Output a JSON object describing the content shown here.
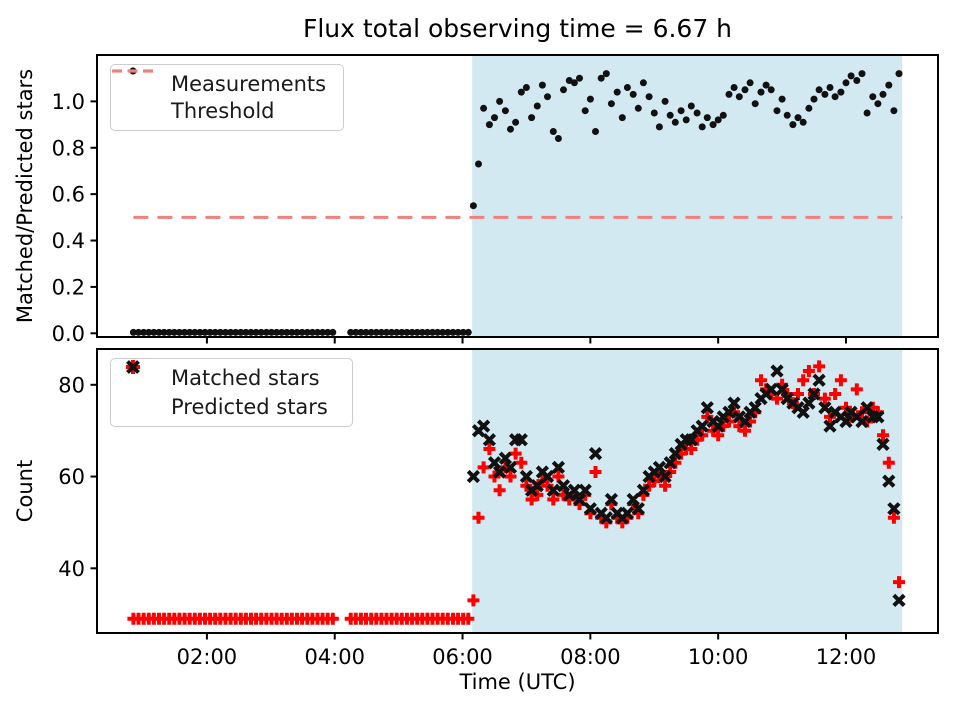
{
  "figure_title": "Flux total observing time = 6.67 h",
  "colors": {
    "background": "#ffffff",
    "spine": "#000000",
    "shaded_region": "#d3e9f1",
    "measurements": "#111111",
    "threshold": "#f08080",
    "matched": "#ff0000",
    "predicted": "#111111"
  },
  "baseline_hours": [
    0.85,
    0.93,
    1.01,
    1.09,
    1.17,
    1.25,
    1.33,
    1.41,
    1.49,
    1.57,
    1.65,
    1.73,
    1.81,
    1.89,
    1.97,
    2.05,
    2.13,
    2.21,
    2.29,
    2.37,
    2.45,
    2.53,
    2.61,
    2.69,
    2.77,
    2.85,
    2.93,
    3.01,
    3.09,
    3.17,
    3.25,
    3.33,
    3.41,
    3.49,
    3.57,
    3.65,
    3.73,
    3.81,
    3.89,
    3.97,
    4.25,
    4.33,
    4.41,
    4.49,
    4.57,
    4.65,
    4.73,
    4.81,
    4.89,
    4.97,
    5.05,
    5.13,
    5.21,
    5.29,
    5.37,
    5.45,
    5.53,
    5.61,
    5.69,
    5.77,
    5.85,
    5.93,
    6.01,
    6.09
  ],
  "active_hours": [
    6.17,
    6.25,
    6.33,
    6.42,
    6.5,
    6.58,
    6.67,
    6.75,
    6.83,
    6.92,
    7.0,
    7.08,
    7.17,
    7.25,
    7.33,
    7.42,
    7.5,
    7.58,
    7.67,
    7.75,
    7.83,
    7.92,
    8.0,
    8.08,
    8.17,
    8.25,
    8.33,
    8.42,
    8.5,
    8.58,
    8.67,
    8.75,
    8.83,
    8.92,
    9.0,
    9.08,
    9.17,
    9.25,
    9.33,
    9.42,
    9.5,
    9.58,
    9.67,
    9.75,
    9.83,
    9.92,
    10.0,
    10.08,
    10.17,
    10.25,
    10.33,
    10.42,
    10.5,
    10.58,
    10.67,
    10.75,
    10.83,
    10.92,
    11.0,
    11.08,
    11.17,
    11.25,
    11.33,
    11.42,
    11.5,
    11.58,
    11.67,
    11.75,
    11.83,
    11.92,
    12.0,
    12.08,
    12.17,
    12.25,
    12.33,
    12.42,
    12.5,
    12.58,
    12.67,
    12.75,
    12.83
  ],
  "chart_data": [
    {
      "type": "scatter",
      "title": "Flux total observing time = 6.67 h",
      "ylabel": "Matched/Predicted stars",
      "yticks": [
        0.0,
        0.2,
        0.4,
        0.6,
        0.8,
        1.0
      ],
      "ytick_labels": [
        "0.0",
        "0.2",
        "0.4",
        "0.6",
        "0.8",
        "1.0"
      ],
      "ylim": [
        -0.016,
        1.2
      ],
      "xlim_hours": [
        0.28,
        13.44
      ],
      "xticks_hours": [
        2,
        4,
        6,
        8,
        10,
        12
      ],
      "shaded_region_hours": [
        6.15,
        12.88
      ],
      "threshold": {
        "value": 0.5,
        "x_start_hours": 0.85,
        "x_end_hours": 12.88,
        "style": "dashed",
        "color": "#f08080"
      },
      "legend": [
        {
          "label": "Measurements",
          "marker": "dot",
          "color": "#111111"
        },
        {
          "label": "Threshold",
          "marker": "dashed-line",
          "color": "#f08080"
        }
      ],
      "series": [
        {
          "name": "measurements-baseline",
          "marker": "dot",
          "color": "#111111",
          "x_ref": "baseline_hours",
          "y_const": 0.004
        },
        {
          "name": "measurements-observing",
          "marker": "dot",
          "color": "#111111",
          "x_ref": "active_hours",
          "y": [
            0.55,
            0.73,
            0.97,
            0.9,
            0.93,
            1.0,
            0.96,
            0.88,
            0.91,
            1.04,
            1.06,
            0.93,
            0.98,
            1.07,
            1.02,
            0.87,
            0.84,
            1.05,
            1.09,
            1.08,
            1.1,
            0.96,
            1.01,
            0.87,
            1.1,
            1.12,
            0.99,
            1.04,
            0.93,
            1.06,
            1.03,
            0.97,
            1.08,
            1.02,
            0.95,
            0.89,
            1.0,
            0.94,
            0.91,
            0.96,
            0.92,
            0.98,
            0.95,
            0.89,
            0.93,
            0.9,
            0.92,
            0.94,
            1.03,
            1.06,
            1.02,
            1.05,
            1.08,
            0.99,
            1.04,
            1.07,
            1.05,
            0.96,
            1.01,
            0.94,
            0.9,
            0.93,
            0.91,
            0.97,
            1.01,
            1.05,
            1.03,
            1.06,
            1.02,
            1.04,
            1.08,
            1.11,
            1.09,
            1.12,
            0.95,
            1.02,
            0.99,
            1.03,
            1.07,
            0.96,
            1.12
          ]
        }
      ]
    },
    {
      "type": "scatter",
      "ylabel": "Count",
      "xlabel": "Time (UTC)",
      "yticks": [
        40,
        60,
        80
      ],
      "ytick_labels": [
        "40",
        "60",
        "80"
      ],
      "ylim": [
        25.9,
        87.8
      ],
      "xlim_hours": [
        0.28,
        13.44
      ],
      "xticks_hours": [
        2,
        4,
        6,
        8,
        10,
        12
      ],
      "xtick_labels": [
        "02:00",
        "04:00",
        "06:00",
        "08:00",
        "10:00",
        "12:00"
      ],
      "shaded_region_hours": [
        6.15,
        12.88
      ],
      "legend": [
        {
          "label": "Matched stars",
          "marker": "plus",
          "color": "#ff0000"
        },
        {
          "label": "Predicted stars",
          "marker": "x",
          "color": "#111111"
        }
      ],
      "series": [
        {
          "name": "matched-baseline",
          "marker": "plus",
          "color": "#ff0000",
          "x_ref": "baseline_hours",
          "y_const": 29
        },
        {
          "name": "matched-observing",
          "marker": "plus",
          "color": "#ff0000",
          "x_ref": "active_hours",
          "y": [
            33,
            51,
            62,
            66,
            60,
            57,
            62,
            60,
            65,
            63,
            58,
            55,
            56,
            59,
            58,
            55,
            60,
            56,
            55,
            56,
            54,
            56,
            52,
            61,
            51,
            50,
            54,
            51,
            50,
            51,
            54,
            52,
            56,
            58,
            59,
            60,
            58,
            61,
            63,
            65,
            66,
            66,
            68,
            69,
            73,
            70,
            69,
            71,
            72,
            74,
            71,
            70,
            72,
            74,
            81,
            79,
            78,
            77,
            80,
            78,
            76,
            78,
            81,
            83,
            78,
            84,
            77,
            73,
            78,
            81,
            75,
            73,
            79,
            74,
            72,
            75,
            74,
            69,
            63,
            51,
            37
          ]
        },
        {
          "name": "predicted-observing",
          "marker": "x",
          "color": "#111111",
          "x_ref": "active_hours",
          "y": [
            60,
            70,
            71,
            68,
            63,
            61,
            64,
            62,
            68,
            68,
            60,
            57,
            58,
            61,
            60,
            57,
            62,
            58,
            56,
            57,
            55,
            57,
            53,
            65,
            52,
            51,
            55,
            52,
            51,
            52,
            55,
            53,
            57,
            60,
            61,
            62,
            60,
            63,
            65,
            67,
            68,
            68,
            70,
            71,
            75,
            72,
            71,
            73,
            74,
            76,
            73,
            72,
            74,
            75,
            77,
            78,
            79,
            83,
            79,
            77,
            76,
            75,
            74,
            76,
            78,
            81,
            75,
            71,
            74,
            73,
            72,
            74,
            73,
            72,
            75,
            73,
            73,
            67,
            59,
            53,
            33
          ]
        }
      ]
    }
  ]
}
